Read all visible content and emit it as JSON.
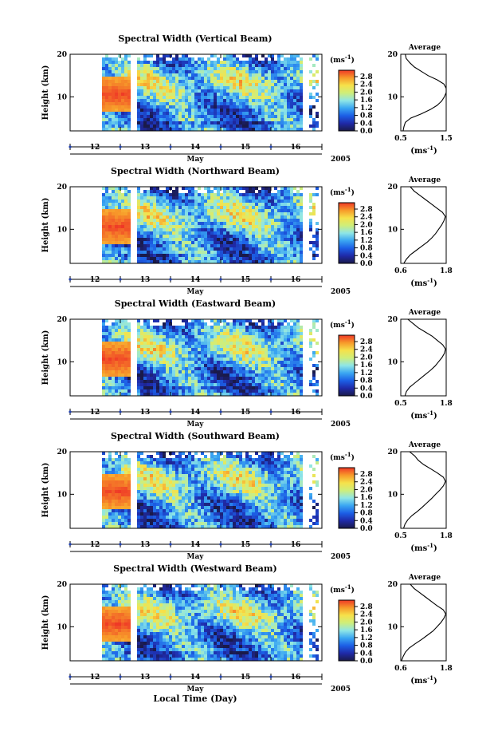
{
  "figure": {
    "xlabel": "Local Time (Day)"
  },
  "colormap_stops": [
    "#1a1a4a",
    "#1f2aa8",
    "#1c5fe6",
    "#3aa6f2",
    "#8fe6e6",
    "#cfee7a",
    "#f6e14a",
    "#f79a2a",
    "#ef3826"
  ],
  "chart_data": [
    {
      "type": "heatmap",
      "title": "Spectral Width (Vertical Beam)",
      "ylabel": "Height (km)",
      "ylim": [
        2,
        20
      ],
      "yticks": [
        "20",
        "10"
      ],
      "xlabel": "May",
      "year": "2005",
      "x_ticks": [
        "12",
        "13",
        "14",
        "15",
        "16"
      ],
      "colorbar": {
        "unit": "(ms",
        "unit_sup": "-1",
        "unit_close": ")",
        "ticks": [
          "2.8",
          "2.4",
          "2.0",
          "1.6",
          "1.2",
          "0.8",
          "0.4",
          "0.0"
        ]
      },
      "profile": {
        "title": "Average",
        "xlabel": "(ms",
        "xlabel_sup": "-1",
        "xlabel_close": ")",
        "xlim": [
          0.5,
          1.5
        ],
        "x_ticks": [
          "0.5",
          "1.5"
        ],
        "yticks": [
          "20",
          "10"
        ],
        "height_km": [
          2,
          3,
          4,
          5,
          6,
          7,
          8,
          9,
          10,
          11,
          12,
          13,
          14,
          15,
          16,
          17,
          18,
          19,
          20
        ],
        "width": [
          0.55,
          0.57,
          0.6,
          0.72,
          0.95,
          1.15,
          1.3,
          1.4,
          1.46,
          1.5,
          1.52,
          1.45,
          1.3,
          1.1,
          0.95,
          0.8,
          0.7,
          0.62,
          0.6
        ]
      }
    },
    {
      "type": "heatmap",
      "title": "Spectral Width (Northward Beam)",
      "ylabel": "Height (km)",
      "ylim": [
        2,
        20
      ],
      "yticks": [
        "20",
        "10"
      ],
      "xlabel": "May",
      "year": "2005",
      "x_ticks": [
        "12",
        "13",
        "14",
        "15",
        "16"
      ],
      "colorbar": {
        "unit": "(ms",
        "unit_sup": "-1",
        "unit_close": ")",
        "ticks": [
          "2.8",
          "2.4",
          "2.0",
          "1.6",
          "1.2",
          "0.8",
          "0.4",
          "0.0"
        ]
      },
      "profile": {
        "title": "Average",
        "xlabel": "(ms",
        "xlabel_sup": "-1",
        "xlabel_close": ")",
        "xlim": [
          0.6,
          1.8
        ],
        "x_ticks": [
          "0.6",
          "1.8"
        ],
        "yticks": [
          "20",
          "10"
        ],
        "height_km": [
          2,
          3,
          4,
          5,
          6,
          7,
          8,
          9,
          10,
          11,
          12,
          13,
          14,
          15,
          16,
          17,
          18,
          19,
          20
        ],
        "width": [
          0.68,
          0.75,
          0.85,
          1.0,
          1.15,
          1.3,
          1.42,
          1.52,
          1.6,
          1.68,
          1.74,
          1.78,
          1.7,
          1.55,
          1.4,
          1.25,
          1.1,
          0.95,
          0.85
        ]
      }
    },
    {
      "type": "heatmap",
      "title": "Spectral Width (Eastward Beam)",
      "ylabel": "Height (km)",
      "ylim": [
        2,
        20
      ],
      "yticks": [
        "20",
        "10"
      ],
      "xlabel": "May",
      "year": "2005",
      "x_ticks": [
        "12",
        "13",
        "14",
        "15",
        "16"
      ],
      "colorbar": {
        "unit": "(ms",
        "unit_sup": "-1",
        "unit_close": ")",
        "ticks": [
          "2.8",
          "2.4",
          "2.0",
          "1.6",
          "1.2",
          "0.8",
          "0.4",
          "0.0"
        ]
      },
      "profile": {
        "title": "Average",
        "xlabel": "(ms",
        "xlabel_sup": "-1",
        "xlabel_close": ")",
        "xlim": [
          0.5,
          1.8
        ],
        "x_ticks": [
          "0.5",
          "1.8"
        ],
        "yticks": [
          "20",
          "10"
        ],
        "height_km": [
          2,
          3,
          4,
          5,
          6,
          7,
          8,
          9,
          10,
          11,
          12,
          13,
          14,
          15,
          16,
          17,
          18,
          19,
          20
        ],
        "width": [
          0.62,
          0.66,
          0.75,
          0.9,
          1.05,
          1.2,
          1.35,
          1.48,
          1.58,
          1.68,
          1.75,
          1.78,
          1.7,
          1.55,
          1.4,
          1.2,
          1.0,
          0.85,
          0.7
        ]
      }
    },
    {
      "type": "heatmap",
      "title": "Spectral Width (Southward Beam)",
      "ylabel": "Height (km)",
      "ylim": [
        2,
        20
      ],
      "yticks": [
        "20",
        "10"
      ],
      "xlabel": "May",
      "year": "2005",
      "x_ticks": [
        "12",
        "13",
        "14",
        "15",
        "16"
      ],
      "colorbar": {
        "unit": "(ms",
        "unit_sup": "-1",
        "unit_close": ")",
        "ticks": [
          "2.8",
          "2.4",
          "2.0",
          "1.6",
          "1.2",
          "0.8",
          "0.4",
          "0.0"
        ]
      },
      "profile": {
        "title": "Average",
        "xlabel": "(ms",
        "xlabel_sup": "-1",
        "xlabel_close": ")",
        "xlim": [
          0.5,
          1.8
        ],
        "x_ticks": [
          "0.5",
          "1.8"
        ],
        "yticks": [
          "20",
          "10"
        ],
        "height_km": [
          2,
          3,
          4,
          5,
          6,
          7,
          8,
          9,
          10,
          11,
          12,
          13,
          14,
          15,
          16,
          17,
          18,
          19,
          20
        ],
        "width": [
          0.58,
          0.62,
          0.7,
          0.82,
          0.98,
          1.12,
          1.25,
          1.38,
          1.5,
          1.62,
          1.72,
          1.78,
          1.72,
          1.55,
          1.35,
          1.15,
          1.0,
          0.9,
          0.75
        ]
      }
    },
    {
      "type": "heatmap",
      "title": "Spectral Width (Westward Beam)",
      "ylabel": "Height (km)",
      "ylim": [
        2,
        20
      ],
      "yticks": [
        "20",
        "10"
      ],
      "xlabel": "May",
      "year": "2005",
      "x_ticks": [
        "12",
        "13",
        "14",
        "15",
        "16"
      ],
      "colorbar": {
        "unit": "(ms",
        "unit_sup": "-1",
        "unit_close": ")",
        "ticks": [
          "2.8",
          "2.4",
          "2.0",
          "1.6",
          "1.2",
          "0.8",
          "0.4",
          "0.0"
        ]
      },
      "profile": {
        "title": "Average",
        "xlabel": "(ms",
        "xlabel_sup": "-1",
        "xlabel_close": ")",
        "xlim": [
          0.6,
          1.8
        ],
        "x_ticks": [
          "0.6",
          "1.8"
        ],
        "yticks": [
          "20",
          "10"
        ],
        "height_km": [
          2,
          3,
          4,
          5,
          6,
          7,
          8,
          9,
          10,
          11,
          12,
          13,
          14,
          15,
          16,
          17,
          18,
          19,
          20
        ],
        "width": [
          0.62,
          0.66,
          0.72,
          0.82,
          0.98,
          1.15,
          1.3,
          1.45,
          1.56,
          1.66,
          1.74,
          1.79,
          1.72,
          1.55,
          1.4,
          1.25,
          1.1,
          0.95,
          0.85
        ]
      }
    }
  ]
}
